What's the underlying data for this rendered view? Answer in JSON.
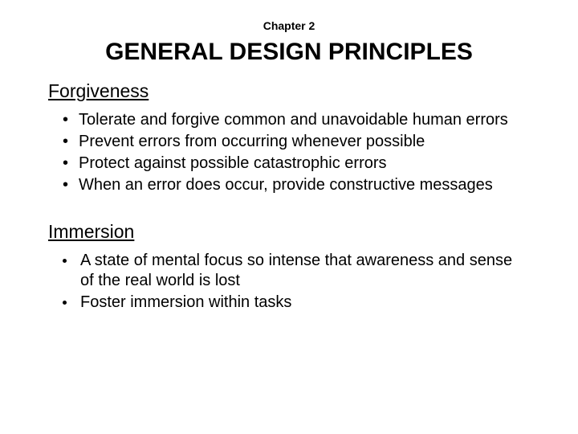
{
  "chapter_label": "Chapter 2",
  "main_title": "GENERAL DESIGN PRINCIPLES",
  "section1": {
    "heading": "Forgiveness",
    "items": [
      "Tolerate and forgive common and unavoidable human errors",
      "Prevent errors from occurring whenever possible",
      "Protect against possible catastrophic errors",
      "When an error does occur, provide constructive messages"
    ]
  },
  "section2": {
    "heading": "Immersion",
    "items": [
      "A state of mental focus so intense that awareness and sense of the real world is lost",
      "Foster immersion within tasks"
    ]
  },
  "colors": {
    "background": "#ffffff",
    "text": "#000000"
  },
  "typography": {
    "chapter_fontsize": 14,
    "title_fontsize": 30,
    "heading_fontsize": 23,
    "body_fontsize": 20,
    "font_family": "Arial"
  }
}
